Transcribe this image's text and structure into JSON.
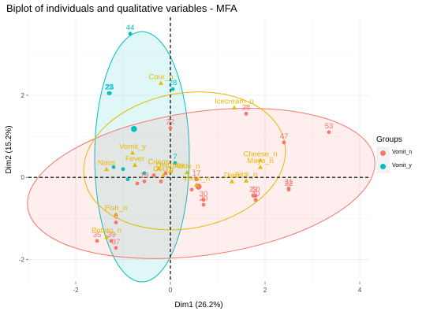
{
  "title": "Biplot of individuals and qualitative variables - MFA",
  "chart_data": {
    "type": "scatter",
    "title": "Biplot of individuals and qualitative variables - MFA",
    "xlabel": "Dim1 (26.2%)",
    "ylabel": "Dim2 (15.2%)",
    "xlim": [
      -3.0,
      4.2
    ],
    "ylim": [
      -2.55,
      3.9
    ],
    "xticks": [
      -2,
      0,
      2,
      4
    ],
    "yticks": [
      -2,
      0,
      2
    ],
    "grid": true,
    "legend": {
      "title": "Groups",
      "position": "right",
      "entries": [
        "Vomit_n",
        "Vomit_y"
      ]
    },
    "colors": {
      "Vomit_n": "#f8766d",
      "Vomit_y": "#00bfc4",
      "variables": "#e7b800"
    },
    "individuals": [
      {
        "label": "44",
        "group": "Vomit_y",
        "x": -0.85,
        "y": 3.5
      },
      {
        "label": "23",
        "group": "Vomit_y",
        "x": -1.3,
        "y": 2.05
      },
      {
        "label": "26",
        "group": "Vomit_y",
        "x": -1.28,
        "y": 2.05
      },
      {
        "label": "28",
        "group": "Vomit_y",
        "x": 0.05,
        "y": 2.15
      },
      {
        "label": "7",
        "group": "Vomit_y",
        "x": 0.1,
        "y": 0.35
      },
      {
        "label": "38",
        "group": "Vomit_n",
        "x": 1.6,
        "y": 1.55
      },
      {
        "label": "22",
        "group": "Vomit_n",
        "x": 0.0,
        "y": 1.2
      },
      {
        "label": "53",
        "group": "Vomit_n",
        "x": 3.35,
        "y": 1.1
      },
      {
        "label": "47",
        "group": "Vomit_n",
        "x": 2.4,
        "y": 0.85
      },
      {
        "label": "32",
        "group": "Vomit_n",
        "x": 2.5,
        "y": -0.3
      },
      {
        "label": "31",
        "group": "Vomit_n",
        "x": 2.5,
        "y": -0.27
      },
      {
        "label": "50",
        "group": "Vomit_n",
        "x": 1.8,
        "y": -0.45
      },
      {
        "label": "29",
        "group": "Vomit_n",
        "x": 1.75,
        "y": -0.45
      },
      {
        "label": "40",
        "group": "Vomit_n",
        "x": 1.8,
        "y": -0.55
      },
      {
        "label": "30",
        "group": "Vomit_n",
        "x": 0.7,
        "y": -0.55
      },
      {
        "label": "20",
        "group": "Vomit_n",
        "x": 0.7,
        "y": -0.67
      },
      {
        "label": "8",
        "group": "Vomit_n",
        "x": -1.15,
        "y": -1.1
      },
      {
        "label": "35",
        "group": "Vomit_n",
        "x": -1.55,
        "y": -1.55
      },
      {
        "label": "39",
        "group": "Vomit_n",
        "x": -1.25,
        "y": -1.55
      },
      {
        "label": "37",
        "group": "Vomit_n",
        "x": -1.15,
        "y": -1.72
      },
      {
        "label": "17",
        "group": "Vomit_n",
        "x": 0.55,
        "y": -0.05
      },
      {
        "label": "19",
        "group": "Vomit_n",
        "x": -0.55,
        "y": -0.1
      },
      {
        "label": "",
        "group": "Vomit_n",
        "x": -0.7,
        "y": -0.15
      },
      {
        "label": "",
        "group": "Vomit_n",
        "x": -0.35,
        "y": 0.05
      },
      {
        "label": "",
        "group": "Vomit_n",
        "x": -0.2,
        "y": -0.1
      },
      {
        "label": "",
        "group": "Vomit_n",
        "x": 0.45,
        "y": -0.3
      },
      {
        "label": "",
        "group": "Vomit_n",
        "x": -0.1,
        "y": 0.1
      },
      {
        "label": "",
        "group": "Vomit_y",
        "x": -1.2,
        "y": 0.25
      },
      {
        "label": "",
        "group": "Vomit_y",
        "x": -1.0,
        "y": 0.2
      },
      {
        "label": "",
        "group": "Vomit_y",
        "x": -0.9,
        "y": -0.05
      },
      {
        "label": "",
        "group": "Vomit_y",
        "x": -0.55,
        "y": 0.1
      }
    ],
    "variables": [
      {
        "label": "Cour_n",
        "x": -0.2,
        "y": 2.3
      },
      {
        "label": "Icecream_n",
        "x": 1.35,
        "y": 1.7
      },
      {
        "label": "Vomit_y",
        "x": -0.8,
        "y": 0.6
      },
      {
        "label": "Cheese_n",
        "x": 1.9,
        "y": 0.42
      },
      {
        "label": "Mayo_n",
        "x": 1.9,
        "y": 0.25
      },
      {
        "label": "Naus",
        "x": -1.35,
        "y": 0.2
      },
      {
        "label": "Fever",
        "x": -0.75,
        "y": 0.3
      },
      {
        "label": "Crisps",
        "x": -0.25,
        "y": 0.22
      },
      {
        "label": "Diarrhea",
        "x": 0.0,
        "y": 0.15
      },
      {
        "label": "Abdo_n",
        "x": 0.35,
        "y": 0.12
      },
      {
        "label": "Courg",
        "x": -0.15,
        "y": 0.05
      },
      {
        "label": "Vomit_n",
        "x": 0.55,
        "y": -0.18
      },
      {
        "label": "Diarr",
        "x": 1.3,
        "y": -0.1
      },
      {
        "label": "Sick_n",
        "x": 1.6,
        "y": -0.08
      },
      {
        "label": "Fish_n",
        "x": -1.15,
        "y": -0.9
      },
      {
        "label": "Potato_n",
        "x": -1.35,
        "y": -1.45
      }
    ],
    "ellipses": [
      {
        "group": "Vomit_y",
        "cx": -0.6,
        "cy": 0.5,
        "rx": 1.0,
        "ry": 3.05,
        "angle": 0
      },
      {
        "group": "Vomit_n",
        "cx": 0.65,
        "cy": -0.15,
        "rx": 3.7,
        "ry": 1.75,
        "angle": 8
      },
      {
        "group": "variables",
        "cx": 0.3,
        "cy": 0.4,
        "rx": 2.15,
        "ry": 1.65,
        "angle": 10
      }
    ]
  }
}
